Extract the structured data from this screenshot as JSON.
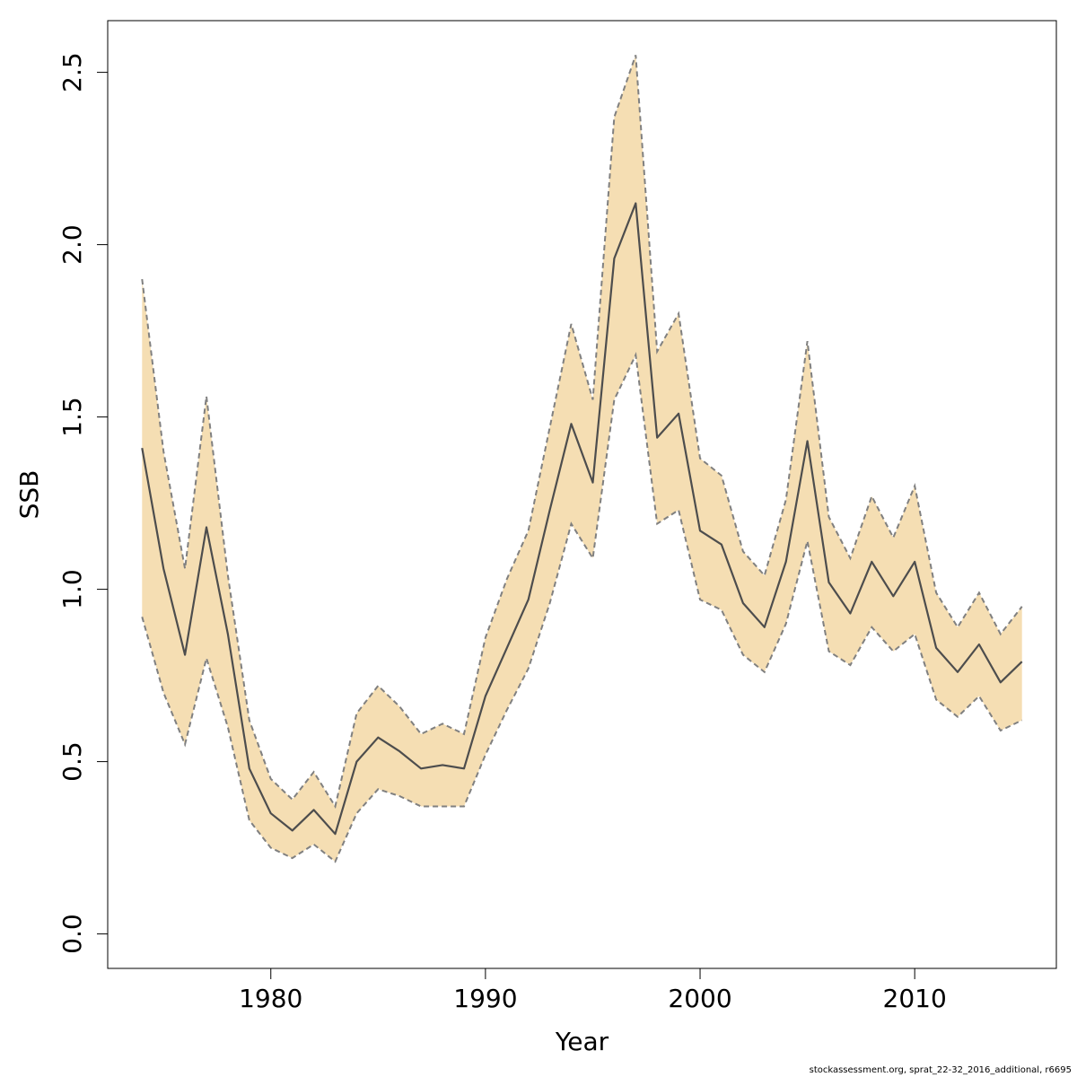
{
  "chart_data": {
    "type": "area",
    "title": "",
    "xlabel": "Year",
    "ylabel": "SSB",
    "xlim": [
      1972.4,
      2016.6
    ],
    "ylim": [
      -0.1,
      2.65
    ],
    "x_ticks": [
      1980,
      1990,
      2000,
      2010
    ],
    "y_ticks": [
      0.0,
      0.5,
      1.0,
      1.5,
      2.0,
      2.5
    ],
    "y_tick_labels": [
      "0.0",
      "0.5",
      "1.0",
      "1.5",
      "2.0",
      "2.5"
    ],
    "grid": false,
    "colors": {
      "band": "#f5deb3",
      "estimate_line": "#4d4d4d",
      "bound_line": "#808080"
    },
    "x": [
      1974,
      1975,
      1976,
      1977,
      1978,
      1979,
      1980,
      1981,
      1982,
      1983,
      1984,
      1985,
      1986,
      1987,
      1988,
      1989,
      1990,
      1991,
      1992,
      1993,
      1994,
      1995,
      1996,
      1997,
      1998,
      1999,
      2000,
      2001,
      2002,
      2003,
      2004,
      2005,
      2006,
      2007,
      2008,
      2009,
      2010,
      2011,
      2012,
      2013,
      2014,
      2015
    ],
    "series": [
      {
        "values": [
          1.41,
          1.06,
          0.81,
          1.18,
          0.87,
          0.48,
          0.35,
          0.3,
          0.36,
          0.29,
          0.5,
          0.57,
          0.53,
          0.48,
          0.49,
          0.48,
          0.69,
          0.83,
          0.97,
          1.23,
          1.48,
          1.31,
          1.96,
          2.12,
          1.44,
          1.51,
          1.17,
          1.13,
          0.96,
          0.89,
          1.08,
          1.43,
          1.02,
          0.93,
          1.08,
          0.98,
          1.08,
          0.83,
          0.76,
          0.84,
          0.73,
          0.79
        ]
      },
      {
        "values": [
          1.9,
          1.4,
          1.06,
          1.56,
          1.04,
          0.62,
          0.45,
          0.39,
          0.47,
          0.37,
          0.64,
          0.72,
          0.66,
          0.58,
          0.61,
          0.58,
          0.86,
          1.03,
          1.17,
          1.47,
          1.77,
          1.55,
          2.37,
          2.55,
          1.69,
          1.8,
          1.38,
          1.33,
          1.11,
          1.04,
          1.26,
          1.72,
          1.21,
          1.09,
          1.27,
          1.15,
          1.3,
          0.99,
          0.89,
          0.99,
          0.87,
          0.95
        ]
      },
      {
        "values": [
          0.92,
          0.7,
          0.55,
          0.8,
          0.6,
          0.33,
          0.25,
          0.22,
          0.26,
          0.21,
          0.35,
          0.42,
          0.4,
          0.37,
          0.37,
          0.37,
          0.52,
          0.65,
          0.77,
          0.96,
          1.19,
          1.09,
          1.55,
          1.68,
          1.19,
          1.23,
          0.97,
          0.94,
          0.81,
          0.76,
          0.9,
          1.14,
          0.82,
          0.78,
          0.89,
          0.82,
          0.87,
          0.68,
          0.63,
          0.69,
          0.59,
          0.62
        ]
      }
    ]
  },
  "footer": {
    "note": "stockassessment.org, sprat_22-32_2016_additional, r6695"
  }
}
